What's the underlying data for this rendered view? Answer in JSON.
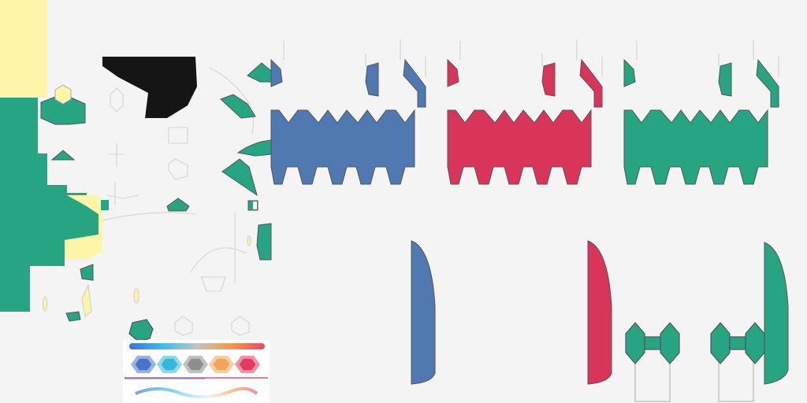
{
  "sheet": {
    "kind": "texture-atlas",
    "background_color": "#f4f4f4",
    "outline_color": "#555555",
    "palette": {
      "blue": "#5079b2",
      "red": "#d9355a",
      "green": "#27a583",
      "yellow": "#fff5a8",
      "black": "#151515",
      "light_gray": "#d9d9d9"
    },
    "team_colors": [
      "blue",
      "red",
      "green"
    ],
    "swatch_colors": [
      "#4a74c9",
      "#36b7d8",
      "#8e8e8e",
      "#f1a557",
      "#e23a62"
    ],
    "gradient_colors": [
      "#1f57d1",
      "#1fb0e6",
      "#b9b9b9",
      "#f08a2b",
      "#e2284f"
    ]
  }
}
